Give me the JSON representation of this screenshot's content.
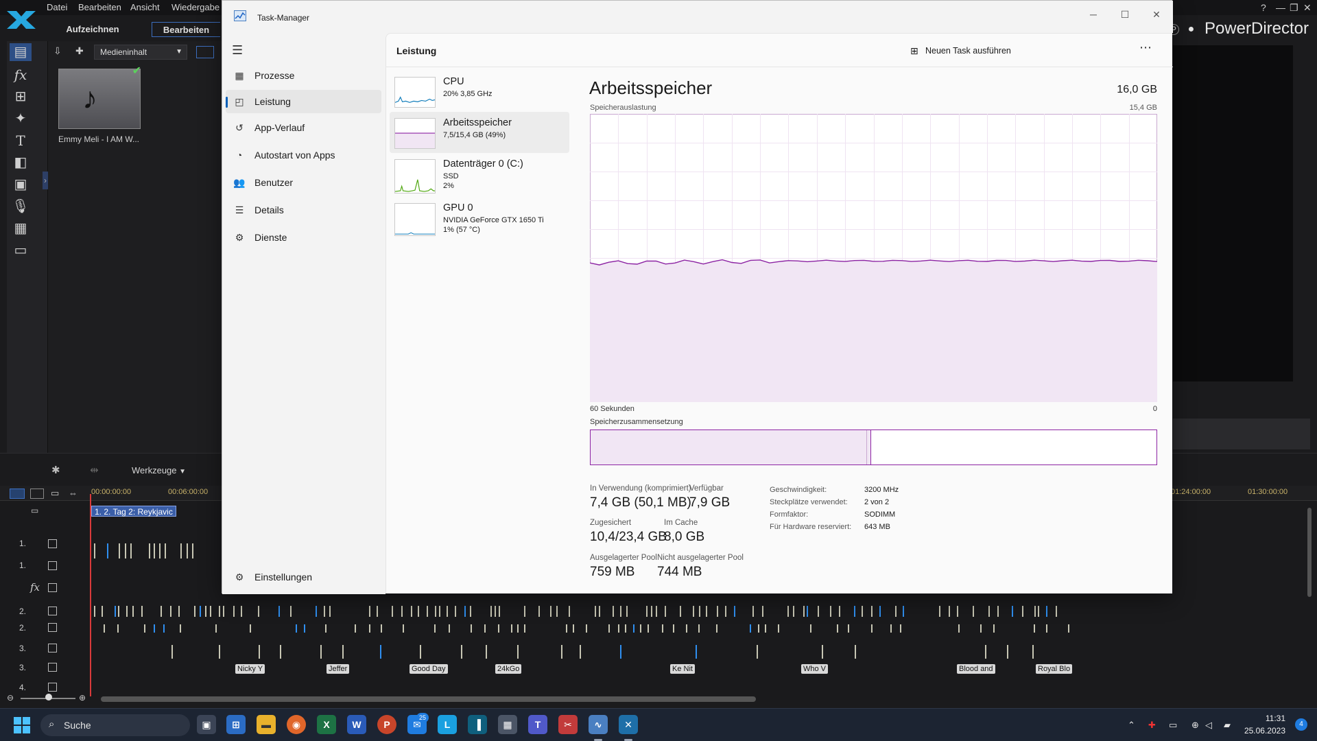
{
  "powerdirector": {
    "brand": "PowerDirector",
    "menu": [
      "Datei",
      "Bearbeiten",
      "Ansicht",
      "Wiedergabe"
    ],
    "modes": [
      "Aufzeichnen",
      "Bearbeiten"
    ],
    "library_dropdown": "Medieninhalt",
    "media_item_label": "Emmy Meli - I AM W...",
    "tools_label": "Werkzeuge",
    "ruler_labels": [
      "00:00:00:00",
      "00:06:00:00",
      "01:24:00:00",
      "01:30:00:00"
    ],
    "chapter_label": "1. 2. Tag 2: Reykjavic",
    "track_labels": [
      "1.",
      "1.",
      "2.",
      "2.",
      "3.",
      "3.",
      "4."
    ],
    "clip_labels": [
      "Nicky Y",
      "Jeffer",
      "Good Day",
      "24kGo",
      "Ke Nit",
      "Who  V",
      "Blood and",
      "Royal Blo"
    ]
  },
  "taskmanager": {
    "window_title": "Task-Manager",
    "page_title": "Leistung",
    "new_task_label": "Neuen Task ausführen",
    "nav_items": [
      {
        "label": "Prozesse",
        "icon": "processes-icon"
      },
      {
        "label": "Leistung",
        "icon": "performance-icon"
      },
      {
        "label": "App-Verlauf",
        "icon": "history-icon"
      },
      {
        "label": "Autostart von Apps",
        "icon": "startup-icon"
      },
      {
        "label": "Benutzer",
        "icon": "users-icon"
      },
      {
        "label": "Details",
        "icon": "details-icon"
      },
      {
        "label": "Dienste",
        "icon": "services-icon"
      }
    ],
    "settings_label": "Einstellungen",
    "resources": [
      {
        "name": "CPU",
        "line1": "20%  3,85 GHz",
        "line2": "",
        "line3": ""
      },
      {
        "name": "Arbeitsspeicher",
        "line1": "7,5/15,4 GB (49%)",
        "line2": "",
        "line3": ""
      },
      {
        "name": "Datenträger 0 (C:)",
        "line1": "SSD",
        "line2": "2%",
        "line3": ""
      },
      {
        "name": "GPU 0",
        "line1": "NVIDIA GeForce GTX 1650 Ti",
        "line2": "1%  (57 °C)",
        "line3": ""
      }
    ],
    "memory": {
      "title": "Arbeitsspeicher",
      "total": "16,0 GB",
      "usage_label": "Speicherauslastung",
      "usage_max": "15,4 GB",
      "time_label": "60 Sekunden",
      "time_end": "0",
      "composition_label": "Speicherzusammensetzung",
      "usage_fraction": 0.49,
      "composition_in_use_fraction": 0.488,
      "stats": [
        {
          "label": "In Verwendung (komprimiert)",
          "value": "7,4 GB (50,1 MB)"
        },
        {
          "label": "Verfügbar",
          "value": "7,9 GB"
        },
        {
          "label": "Zugesichert",
          "value": "10,4/23,4 GB"
        },
        {
          "label": "Im Cache",
          "value": "8,0 GB"
        },
        {
          "label": "Ausgelagerter Pool",
          "value": "759 MB"
        },
        {
          "label": "Nicht ausgelagerter Pool",
          "value": "744 MB"
        }
      ],
      "details": [
        {
          "key": "Geschwindigkeit:",
          "value": "3200 MHz"
        },
        {
          "key": "Steckplätze verwendet:",
          "value": "2 von 2"
        },
        {
          "key": "Formfaktor:",
          "value": "SODIMM"
        },
        {
          "key": "Für Hardware reserviert:",
          "value": "643 MB"
        }
      ]
    },
    "colors": {
      "memory": "#8c23a3",
      "cpu": "#117dbb",
      "disk": "#4da60c",
      "accent": "#005fb8"
    }
  },
  "taskbar": {
    "search_label": "Suche",
    "time": "11:31",
    "date": "25.06.2023",
    "mail_badge": "25",
    "notification_count": "4"
  }
}
